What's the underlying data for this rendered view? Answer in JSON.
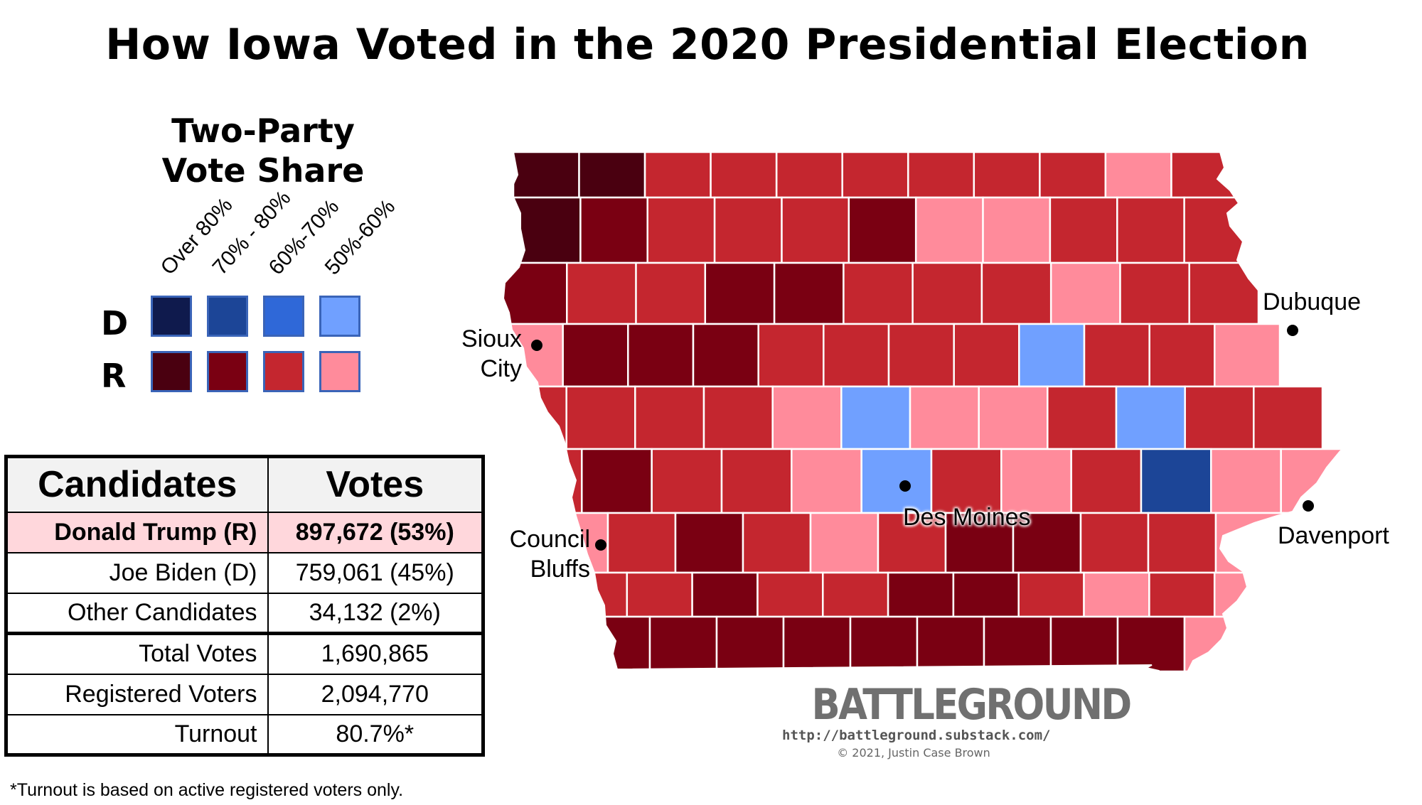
{
  "title": "How Iowa Voted in the 2020 Presidential Election",
  "legend": {
    "title_line1": "Two-Party",
    "title_line2": "Vote Share",
    "columns": [
      "Over 80%",
      "70% - 80%",
      "60%-70%",
      "50%-60%"
    ],
    "row_d": "D",
    "row_r": "R",
    "colors_d": [
      "#0f1a4d",
      "#1c4597",
      "#2f68d8",
      "#70a0ff"
    ],
    "colors_r": [
      "#4a0010",
      "#7a0012",
      "#c4262f",
      "#ff8b9b"
    ]
  },
  "results_table": {
    "header": {
      "candidates": "Candidates",
      "votes": "Votes"
    },
    "rows": [
      {
        "label": "Donald Trump (R)",
        "value": "897,672 (53%)"
      },
      {
        "label": "Joe Biden (D)",
        "value": "759,061 (45%)"
      },
      {
        "label": "Other Candidates",
        "value": "34,132 (2%)"
      },
      {
        "label": "Total Votes",
        "value": "1,690,865"
      },
      {
        "label": "Registered Voters",
        "value": "2,094,770"
      },
      {
        "label": "Turnout",
        "value": "80.7%*"
      }
    ]
  },
  "footnote": "*Turnout is based on active registered voters only.",
  "cities": {
    "sioux_city": {
      "line1": "Sioux",
      "line2": "City"
    },
    "council_bluffs": {
      "line1": "Council",
      "line2": "Bluffs"
    },
    "des_moines": "Des Moines",
    "dubuque": "Dubuque",
    "davenport": "Davenport"
  },
  "branding": {
    "name": "BATTLEGROUND",
    "url": "http://battleground.substack.com/",
    "copyright": "© 2021, Justin Case Brown"
  },
  "map_counties": [
    {
      "row": 1,
      "colors": [
        "darkest",
        "darkest",
        "mid",
        "mid",
        "mid",
        "mid",
        "mid",
        "mid",
        "mid",
        "light",
        "mid"
      ]
    },
    {
      "row": 2,
      "colors": [
        "darkest",
        "dark",
        "mid",
        "mid",
        "mid",
        "dark",
        "light",
        "light",
        "mid",
        "mid",
        "mid"
      ]
    },
    {
      "row": 3,
      "colors": [
        "dark",
        "mid",
        "mid",
        "dark",
        "dark",
        "mid",
        "mid",
        "mid",
        "light",
        "mid",
        "mid"
      ]
    },
    {
      "row": 4,
      "colors": [
        "light",
        "dark",
        "dark",
        "dark",
        "mid",
        "mid",
        "mid",
        "mid",
        "blue_light",
        "mid",
        "mid",
        "light"
      ]
    },
    {
      "row": 5,
      "colors": [
        "mid",
        "mid",
        "mid",
        "mid",
        "light",
        "blue_light",
        "light",
        "light",
        "mid",
        "blue_light",
        "mid",
        "mid"
      ]
    },
    {
      "row": 6,
      "colors": [
        "mid",
        "dark",
        "mid",
        "mid",
        "light",
        "blue_light",
        "mid",
        "light",
        "mid",
        "blue_mid",
        "light",
        "light"
      ]
    },
    {
      "row": 7,
      "colors": [
        "light",
        "mid",
        "dark",
        "mid",
        "light",
        "mid",
        "dark",
        "dark",
        "mid",
        "mid",
        "light",
        "blue_light"
      ]
    },
    {
      "row": 8,
      "colors": [
        "mid",
        "mid",
        "dark",
        "mid",
        "mid",
        "dark",
        "dark",
        "mid",
        "light",
        "mid",
        "light"
      ]
    },
    {
      "row": 9,
      "colors": [
        "dark",
        "dark",
        "dark",
        "dark",
        "dark",
        "dark",
        "dark",
        "dark",
        "dark",
        "light"
      ]
    }
  ]
}
